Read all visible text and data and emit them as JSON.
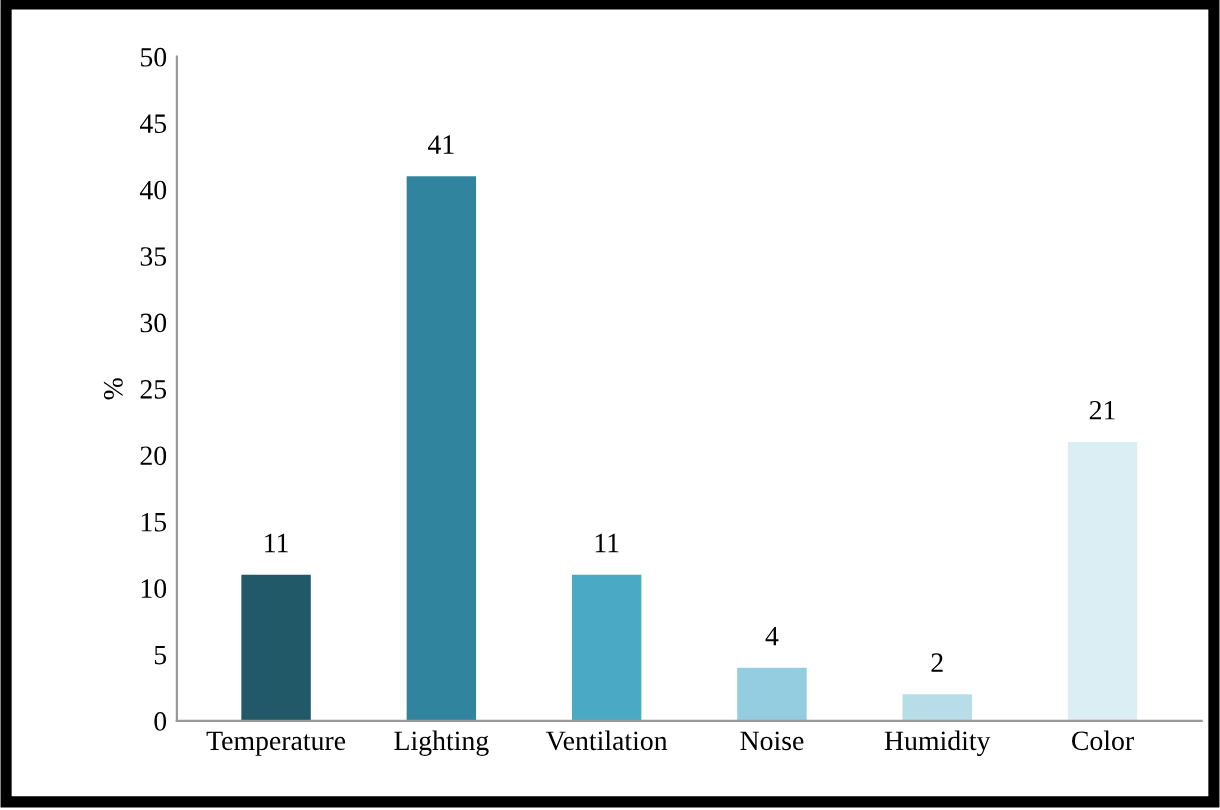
{
  "chart_data": {
    "type": "bar",
    "ylabel": "%",
    "categories": [
      "Temperature",
      "Lighting",
      "Ventilation",
      "Noise",
      "Humidity",
      "Color"
    ],
    "values": [
      11,
      41,
      11,
      4,
      2,
      21
    ],
    "colors": [
      "#225968",
      "#31849e",
      "#4aaac5",
      "#93cddf",
      "#b7dde8",
      "#dbeef3"
    ],
    "ylim": [
      0,
      50
    ],
    "yticks": [
      0,
      5,
      10,
      15,
      20,
      25,
      30,
      35,
      40,
      45,
      50
    ],
    "data_labels": true,
    "grid": false
  }
}
